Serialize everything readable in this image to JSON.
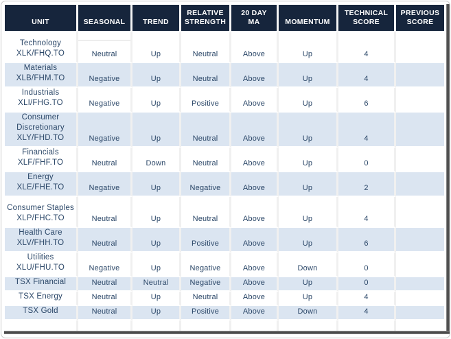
{
  "table": {
    "headers": [
      {
        "id": "unit",
        "lines": [
          "UNIT"
        ]
      },
      {
        "id": "seasonal",
        "lines": [
          "SEASONAL"
        ]
      },
      {
        "id": "trend",
        "lines": [
          "TREND"
        ]
      },
      {
        "id": "relative_strength",
        "lines": [
          "RELATIVE",
          "STRENGTH"
        ]
      },
      {
        "id": "ma_20day",
        "lines": [
          "20 DAY",
          "MA"
        ]
      },
      {
        "id": "momentum",
        "lines": [
          "MOMENTUM"
        ]
      },
      {
        "id": "technical_score",
        "lines": [
          "TECHNICAL",
          "SCORE"
        ]
      },
      {
        "id": "previous_score",
        "lines": [
          "PREVIOUS",
          "SCORE"
        ]
      }
    ],
    "rows": [
      {
        "unit": [
          "Technology",
          "XLK/FHQ.TO"
        ],
        "seasonal": "Neutral",
        "trend": "Up",
        "relative_strength": "Neutral",
        "ma_20day": "Above",
        "momentum": "Up",
        "technical_score": "4",
        "previous_score": ""
      },
      {
        "unit": [
          "Materials",
          "XLB/FHM.TO"
        ],
        "seasonal": "Negative",
        "trend": "Up",
        "relative_strength": "Neutral",
        "ma_20day": "Above",
        "momentum": "Up",
        "technical_score": "4",
        "previous_score": ""
      },
      {
        "unit": [
          "Industrials",
          "XLI/FHG.TO"
        ],
        "seasonal": "Negative",
        "trend": "Up",
        "relative_strength": "Positive",
        "ma_20day": "Above",
        "momentum": "Up",
        "technical_score": "6",
        "previous_score": ""
      },
      {
        "unit": [
          "Consumer",
          "Discretionary",
          "XLY/FHD.TO"
        ],
        "seasonal": "Negative",
        "trend": "Up",
        "relative_strength": "Neutral",
        "ma_20day": "Above",
        "momentum": "Up",
        "technical_score": "4",
        "previous_score": ""
      },
      {
        "unit": [
          "Financials",
          "XLF/FHF.TO"
        ],
        "seasonal": "Neutral",
        "trend": "Down",
        "relative_strength": "Neutral",
        "ma_20day": "Above",
        "momentum": "Up",
        "technical_score": "0",
        "previous_score": ""
      },
      {
        "unit": [
          "Energy",
          "XLE/FHE.TO"
        ],
        "seasonal": "Negative",
        "trend": "Up",
        "relative_strength": "Negative",
        "ma_20day": "Above",
        "momentum": "Up",
        "technical_score": "2",
        "previous_score": ""
      },
      {
        "unit": [
          "Consumer Staples",
          "XLP/FHC.TO"
        ],
        "seasonal": "Neutral",
        "trend": "Up",
        "relative_strength": "Neutral",
        "ma_20day": "Above",
        "momentum": "Up",
        "technical_score": "4",
        "previous_score": ""
      },
      {
        "unit": [
          "Health Care",
          "XLV/FHH.TO"
        ],
        "seasonal": "Neutral",
        "trend": "Up",
        "relative_strength": "Positive",
        "ma_20day": "Above",
        "momentum": "Up",
        "technical_score": "6",
        "previous_score": ""
      },
      {
        "unit": [
          "Utilities",
          "XLU/FHU.TO"
        ],
        "seasonal": "Negative",
        "trend": "Up",
        "relative_strength": "Negative",
        "ma_20day": "Above",
        "momentum": "Down",
        "technical_score": "0",
        "previous_score": ""
      },
      {
        "unit": [
          "TSX Financial"
        ],
        "seasonal": "Neutral",
        "trend": "Neutral",
        "relative_strength": "Negative",
        "ma_20day": "Above",
        "momentum": "Up",
        "technical_score": "0",
        "previous_score": ""
      },
      {
        "unit": [
          "TSX Energy"
        ],
        "seasonal": "Neutral",
        "trend": "Up",
        "relative_strength": "Neutral",
        "ma_20day": "Above",
        "momentum": "Up",
        "technical_score": "4",
        "previous_score": ""
      },
      {
        "unit": [
          "TSX Gold"
        ],
        "seasonal": "Neutral",
        "trend": "Up",
        "relative_strength": "Positive",
        "ma_20day": "Above",
        "momentum": "Down",
        "technical_score": "4",
        "previous_score": ""
      }
    ]
  },
  "colors": {
    "header_bg": "#16253c",
    "header_text": "#ffffff",
    "row_bg": "#ffffff",
    "row_alt_bg": "#dbe5f1",
    "cell_text": "#2b4768"
  }
}
